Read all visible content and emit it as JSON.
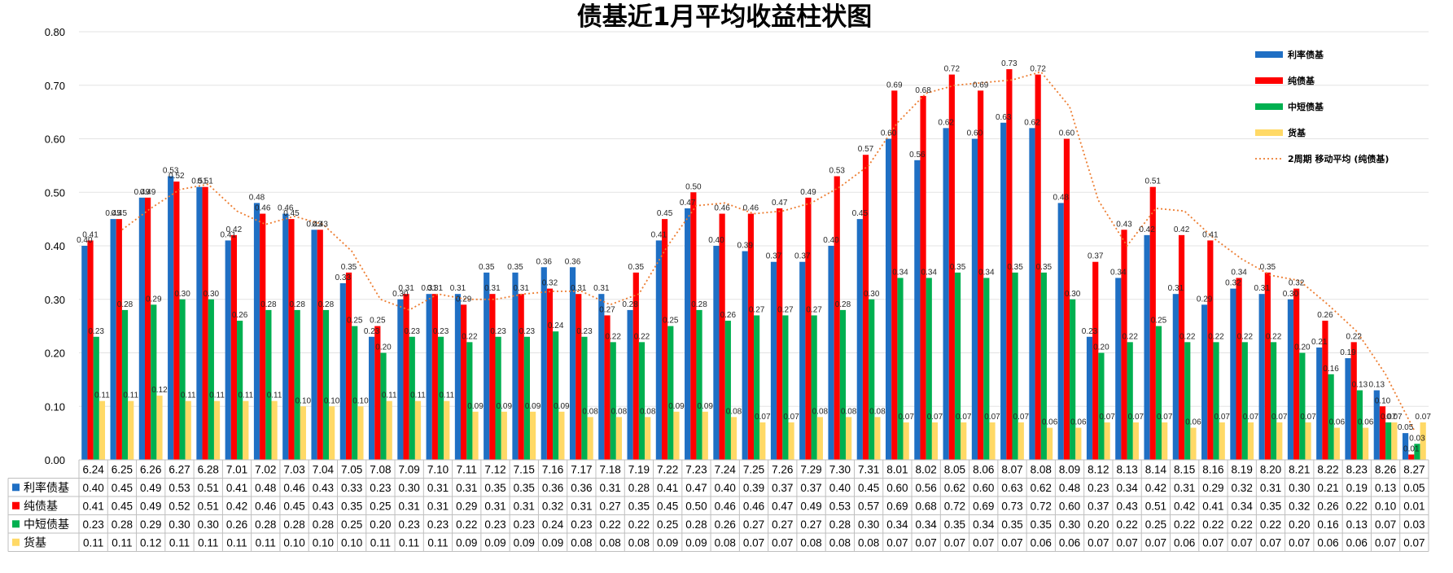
{
  "chart_data": {
    "type": "bar",
    "title": "债基近1月平均收益柱状图",
    "ylim": [
      0,
      0.8
    ],
    "yticks": [
      "0.00",
      "0.10",
      "0.20",
      "0.30",
      "0.40",
      "0.50",
      "0.60",
      "0.70",
      "0.80"
    ],
    "grid": true,
    "legend_position": "top-right",
    "categories": [
      "6.24",
      "6.25",
      "6.26",
      "6.27",
      "6.28",
      "7.01",
      "7.02",
      "7.03",
      "7.04",
      "7.05",
      "7.08",
      "7.09",
      "7.10",
      "7.11",
      "7.12",
      "7.15",
      "7.16",
      "7.17",
      "7.18",
      "7.19",
      "7.22",
      "7.23",
      "7.24",
      "7.25",
      "7.26",
      "7.29",
      "7.30",
      "7.31",
      "8.01",
      "8.02",
      "8.05",
      "8.06",
      "8.07",
      "8.08",
      "8.09",
      "8.12",
      "8.13",
      "8.14",
      "8.15",
      "8.16",
      "8.19",
      "8.20",
      "8.21",
      "8.22",
      "8.23",
      "8.26",
      "8.27"
    ],
    "series": [
      {
        "name": "利率债基",
        "color": "#1f6fc4",
        "values": [
          0.4,
          0.45,
          0.49,
          0.53,
          0.51,
          0.41,
          0.48,
          0.46,
          0.43,
          0.33,
          0.23,
          0.3,
          0.31,
          0.31,
          0.35,
          0.35,
          0.36,
          0.36,
          0.31,
          0.28,
          0.41,
          0.47,
          0.4,
          0.39,
          0.37,
          0.37,
          0.4,
          0.45,
          0.6,
          0.56,
          0.62,
          0.6,
          0.63,
          0.62,
          0.48,
          0.23,
          0.34,
          0.42,
          0.31,
          0.29,
          0.32,
          0.31,
          0.3,
          0.21,
          0.19,
          0.13,
          0.05
        ]
      },
      {
        "name": "纯债基",
        "color": "#ff0000",
        "values": [
          0.41,
          0.45,
          0.49,
          0.52,
          0.51,
          0.42,
          0.46,
          0.45,
          0.43,
          0.35,
          0.25,
          0.31,
          0.31,
          0.29,
          0.31,
          0.31,
          0.32,
          0.31,
          0.27,
          0.35,
          0.45,
          0.5,
          0.46,
          0.46,
          0.47,
          0.49,
          0.53,
          0.57,
          0.69,
          0.68,
          0.72,
          0.69,
          0.73,
          0.72,
          0.6,
          0.37,
          0.43,
          0.51,
          0.42,
          0.41,
          0.34,
          0.35,
          0.32,
          0.26,
          0.22,
          0.1,
          0.01
        ]
      },
      {
        "name": "中短债基",
        "color": "#00b050",
        "values": [
          0.23,
          0.28,
          0.29,
          0.3,
          0.3,
          0.26,
          0.28,
          0.28,
          0.28,
          0.25,
          0.2,
          0.23,
          0.23,
          0.22,
          0.23,
          0.23,
          0.24,
          0.23,
          0.22,
          0.22,
          0.25,
          0.28,
          0.26,
          0.27,
          0.27,
          0.27,
          0.28,
          0.3,
          0.34,
          0.34,
          0.35,
          0.34,
          0.35,
          0.35,
          0.3,
          0.2,
          0.22,
          0.25,
          0.22,
          0.22,
          0.22,
          0.22,
          0.2,
          0.16,
          0.13,
          0.07,
          0.03
        ]
      },
      {
        "name": "货基",
        "color": "#ffd966",
        "values": [
          0.11,
          0.11,
          0.12,
          0.11,
          0.11,
          0.11,
          0.11,
          0.1,
          0.1,
          0.1,
          0.11,
          0.11,
          0.11,
          0.09,
          0.09,
          0.09,
          0.09,
          0.08,
          0.08,
          0.08,
          0.09,
          0.09,
          0.08,
          0.07,
          0.07,
          0.08,
          0.08,
          0.08,
          0.07,
          0.07,
          0.07,
          0.07,
          0.07,
          0.06,
          0.06,
          0.07,
          0.07,
          0.07,
          0.06,
          0.07,
          0.07,
          0.07,
          0.07,
          0.06,
          0.06,
          0.07,
          0.07
        ]
      }
    ],
    "trendline": {
      "name": "2周期 移动平均 (纯债基)",
      "color": "#ed7d31",
      "period": 2,
      "of_series": "纯债基"
    }
  }
}
